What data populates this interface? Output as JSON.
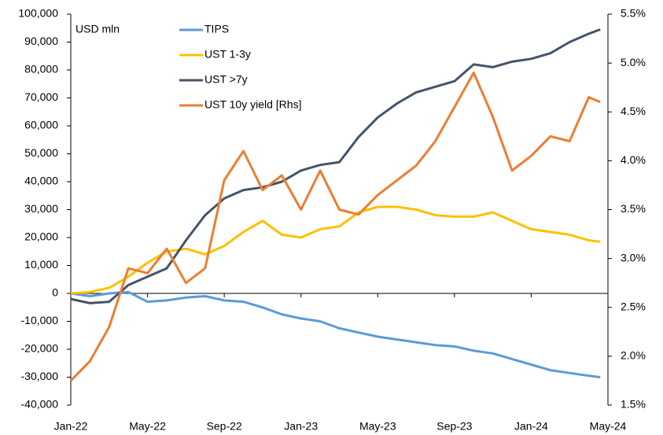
{
  "chart_data": {
    "type": "line",
    "annotation": "USD mln",
    "x": [
      0,
      1,
      2,
      3,
      4,
      5,
      6,
      7,
      8,
      9,
      10,
      11,
      12,
      13,
      14,
      15,
      16,
      17,
      18,
      19,
      20,
      21,
      22,
      23,
      24,
      25,
      26,
      27,
      27.6
    ],
    "xlim": [
      0,
      28
    ],
    "xticks": [
      {
        "value": 0,
        "label": "Jan-22"
      },
      {
        "value": 4,
        "label": "May-22"
      },
      {
        "value": 8,
        "label": "Sep-22"
      },
      {
        "value": 12,
        "label": "Jan-23"
      },
      {
        "value": 16,
        "label": "May-23"
      },
      {
        "value": 20,
        "label": "Sep-23"
      },
      {
        "value": 24,
        "label": "Jan-24"
      },
      {
        "value": 28,
        "label": "May-24"
      }
    ],
    "ylim": [
      -40000,
      100000
    ],
    "yticks": [
      {
        "value": -40000,
        "label": "-40,000"
      },
      {
        "value": -30000,
        "label": "-30,000"
      },
      {
        "value": -20000,
        "label": "-20,000"
      },
      {
        "value": -10000,
        "label": "-10,000"
      },
      0,
      {
        "value": 10000,
        "label": "10,000"
      },
      {
        "value": 20000,
        "label": "20,000"
      },
      {
        "value": 30000,
        "label": "30,000"
      },
      {
        "value": 40000,
        "label": "40,000"
      },
      {
        "value": 50000,
        "label": "50,000"
      },
      {
        "value": 60000,
        "label": "60,000"
      },
      {
        "value": 70000,
        "label": "70,000"
      },
      {
        "value": 80000,
        "label": "80,000"
      },
      {
        "value": 90000,
        "label": "90,000"
      },
      {
        "value": 100000,
        "label": "100,000"
      }
    ],
    "y2lim": [
      1.5,
      5.5
    ],
    "y2ticks": [
      {
        "value": 1.5,
        "label": "1.5%"
      },
      {
        "value": 2.0,
        "label": "2.0%"
      },
      {
        "value": 2.5,
        "label": "2.5%"
      },
      {
        "value": 3.0,
        "label": "3.0%"
      },
      {
        "value": 3.5,
        "label": "3.5%"
      },
      {
        "value": 4.0,
        "label": "4.0%"
      },
      {
        "value": 4.5,
        "label": "4.5%"
      },
      {
        "value": 5.0,
        "label": "5.0%"
      },
      {
        "value": 5.5,
        "label": "5.5%"
      }
    ],
    "series": [
      {
        "name": "TIPS",
        "color": "#5b9bd5",
        "values": [
          0,
          -1000,
          0,
          500,
          -3000,
          -2500,
          -1500,
          -1000,
          -2500,
          -3000,
          -5000,
          -7500,
          -9000,
          -10000,
          -12500,
          -14000,
          -15500,
          -16500,
          -17500,
          -18500,
          -19000,
          -20500,
          -21500,
          -23500,
          -25500,
          -27500,
          -28500,
          -29500,
          -30000
        ]
      },
      {
        "name": "UST 1-3y",
        "color": "#ffc000",
        "values": [
          0,
          500,
          2000,
          6000,
          11000,
          15000,
          16000,
          14000,
          17000,
          22000,
          26000,
          21000,
          20000,
          23000,
          24000,
          29000,
          31000,
          31000,
          30000,
          28000,
          27500,
          27500,
          29000,
          26000,
          23000,
          22000,
          21000,
          19000,
          18500
        ]
      },
      {
        "name": "UST >7y",
        "color": "#44546a",
        "values": [
          -2000,
          -3500,
          -3000,
          3000,
          6000,
          9000,
          19000,
          28000,
          34000,
          37000,
          38000,
          40000,
          44000,
          46000,
          47000,
          56000,
          63000,
          68000,
          72000,
          74000,
          76000,
          82000,
          81000,
          83000,
          84000,
          86000,
          90000,
          93000,
          94500
        ]
      },
      {
        "name": "UST 10y yield [Rhs]",
        "color": "#ed7d31",
        "axis": "y2",
        "values": [
          1.75,
          1.95,
          2.3,
          2.9,
          2.85,
          3.1,
          2.75,
          2.9,
          3.8,
          4.1,
          3.7,
          3.85,
          3.5,
          3.9,
          3.5,
          3.45,
          3.65,
          3.8,
          3.95,
          4.2,
          4.55,
          4.9,
          4.45,
          3.9,
          4.05,
          4.25,
          4.2,
          4.65,
          4.6
        ]
      }
    ]
  }
}
